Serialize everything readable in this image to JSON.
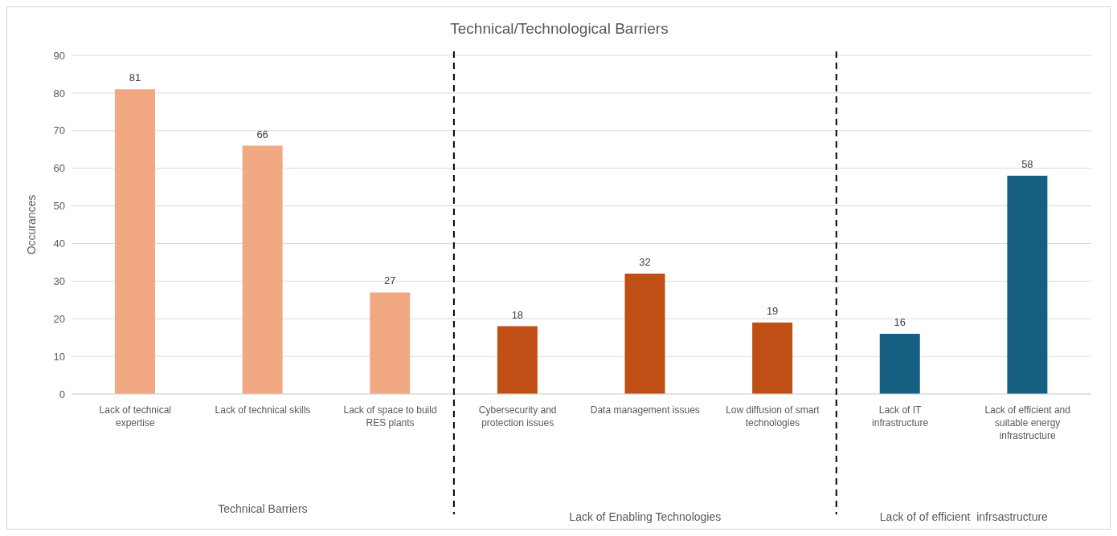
{
  "chart_data": {
    "type": "bar",
    "title": "Technical/Technological Barriers",
    "ylabel": "Occurances",
    "categories": [
      "Lack of technical expertise",
      "Lack of technical skills",
      "Lack of space to build RES plants",
      "Cybersecurity and protection issues",
      "Data management issues",
      "Low diffusion of smart technologies",
      "Lack of IT infrastructure",
      "Lack of efficient and suitable energy infrastructure"
    ],
    "values": [
      81,
      66,
      27,
      18,
      32,
      19,
      16,
      58
    ],
    "colors": [
      "#f2a983",
      "#f2a983",
      "#f2a983",
      "#c04f15",
      "#c04f15",
      "#c04f15",
      "#156082",
      "#156082"
    ],
    "ylim": [
      0,
      90
    ],
    "yticks": [
      0,
      10,
      20,
      30,
      40,
      50,
      60,
      70,
      80,
      90
    ],
    "grid": "y",
    "data_labels": true,
    "annotations": [
      "Technical Barriers",
      "Lack of Enabling Technologies",
      "Lack of of efficient  infrsastructure"
    ]
  }
}
